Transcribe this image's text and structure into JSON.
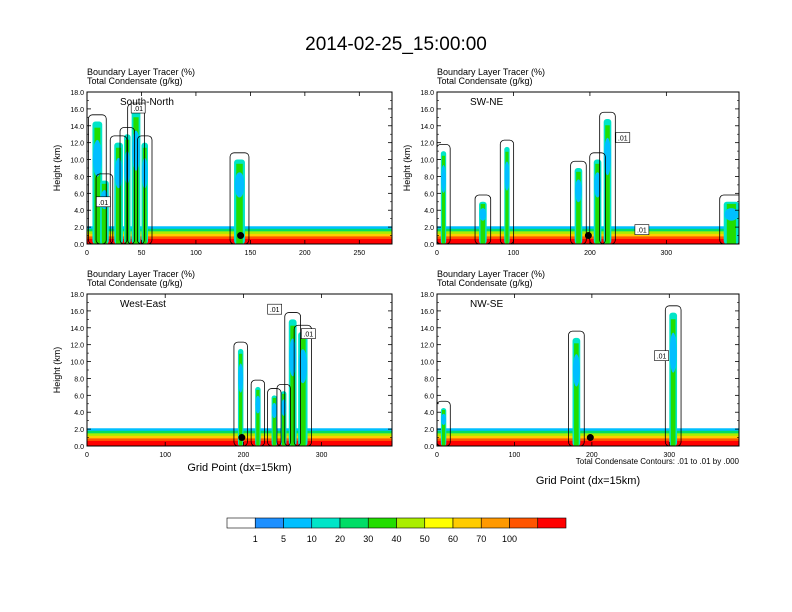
{
  "title": "2014-02-25_15:00:00",
  "footer": {
    "contour_note": "Total Condensate Contours: .01 to .01 by .000",
    "xlabel": "Grid Point (dx=15km)"
  },
  "colorbar": {
    "levels": [
      "1",
      "5",
      "10",
      "20",
      "30",
      "40",
      "50",
      "60",
      "70",
      "100"
    ],
    "colors": [
      "#ffffff",
      "#1e90ff",
      "#00bfff",
      "#00e5c8",
      "#00dd66",
      "#22dd00",
      "#aaee00",
      "#ffff00",
      "#ffcc00",
      "#ff9900",
      "#ff5500",
      "#ff0000"
    ]
  },
  "chart_data": [
    {
      "type": "heatmap",
      "name": "South-North",
      "header": [
        "Boundary Layer Tracer   (%)",
        "Total Condensate   (g/kg)"
      ],
      "ylabel": "Height (km)",
      "xlabel": "",
      "ylim": [
        0,
        18
      ],
      "yticks": [
        "0.0",
        "2.0",
        "4.0",
        "6.0",
        "8.0",
        "10.0",
        "12.0",
        "14.0",
        "16.0",
        "18.0"
      ],
      "xlim": [
        0,
        280
      ],
      "xticks": [
        "0",
        "50",
        "100",
        "150",
        "200",
        "250"
      ],
      "contour_labels": [
        {
          "text": ".01",
          "x": 47,
          "y": 16.1
        },
        {
          "text": ".01",
          "x": 15,
          "y": 5.0
        }
      ],
      "marker": {
        "x": 141,
        "y": 1.0
      },
      "tracer_columns": [
        {
          "x": [
            5,
            14
          ],
          "top": 14.5
        },
        {
          "x": [
            12,
            20
          ],
          "top": 7.5
        },
        {
          "x": [
            25,
            33
          ],
          "top": 12.0
        },
        {
          "x": [
            34,
            40
          ],
          "top": 13.0
        },
        {
          "x": [
            41,
            49
          ],
          "top": 15.8
        },
        {
          "x": [
            50,
            56
          ],
          "top": 12.0
        },
        {
          "x": [
            135,
            145
          ],
          "top": 10.0
        }
      ]
    },
    {
      "type": "heatmap",
      "name": "SW-NE",
      "header": [
        "Boundary Layer Tracer   (%)",
        "Total Condensate   (g/kg)"
      ],
      "ylabel": "Height (km)",
      "xlabel": "",
      "ylim": [
        0,
        18
      ],
      "yticks": [
        "0.0",
        "2.0",
        "4.0",
        "6.0",
        "8.0",
        "10.0",
        "12.0",
        "14.0",
        "16.0",
        "18.0"
      ],
      "xlim": [
        0,
        395
      ],
      "xticks": [
        "0",
        "100",
        "200",
        "300"
      ],
      "contour_labels": [
        {
          "text": ".01",
          "x": 243,
          "y": 12.6
        },
        {
          "text": ".01",
          "x": 268,
          "y": 1.7
        }
      ],
      "marker": {
        "x": 198,
        "y": 1.0
      },
      "tracer_columns": [
        {
          "x": [
            5,
            12
          ],
          "top": 11.0
        },
        {
          "x": [
            55,
            65
          ],
          "top": 5.0
        },
        {
          "x": [
            88,
            95
          ],
          "top": 11.5
        },
        {
          "x": [
            180,
            190
          ],
          "top": 9.0
        },
        {
          "x": [
            205,
            215
          ],
          "top": 10.0
        },
        {
          "x": [
            218,
            228
          ],
          "top": 14.8
        },
        {
          "x": [
            375,
            395
          ],
          "top": 5.0
        }
      ]
    },
    {
      "type": "heatmap",
      "name": "West-East",
      "header": [
        "Boundary Layer Tracer   (%)",
        "Total Condensate   (g/kg)"
      ],
      "ylabel": "Height (km)",
      "xlabel": "Grid Point (dx=15km)",
      "ylim": [
        0,
        18
      ],
      "yticks": [
        "0.0",
        "2.0",
        "4.0",
        "6.0",
        "8.0",
        "10.0",
        "12.0",
        "14.0",
        "16.0",
        "18.0"
      ],
      "xlim": [
        0,
        390
      ],
      "xticks": [
        "0",
        "100",
        "200",
        "300"
      ],
      "contour_labels": [
        {
          "text": ".01",
          "x": 240,
          "y": 16.2
        },
        {
          "text": ".01",
          "x": 283,
          "y": 13.3
        }
      ],
      "marker": {
        "x": 198,
        "y": 1.0
      },
      "tracer_columns": [
        {
          "x": [
            193,
            200
          ],
          "top": 11.5
        },
        {
          "x": [
            215,
            222
          ],
          "top": 7.0
        },
        {
          "x": [
            236,
            243
          ],
          "top": 6.0
        },
        {
          "x": [
            248,
            255
          ],
          "top": 6.5
        },
        {
          "x": [
            258,
            268
          ],
          "top": 15.0
        },
        {
          "x": [
            270,
            282
          ],
          "top": 13.5
        }
      ]
    },
    {
      "type": "heatmap",
      "name": "NW-SE",
      "header": [
        "Boundary Layer Tracer   (%)",
        "Total Condensate   (g/kg)"
      ],
      "ylabel": "",
      "xlabel": "",
      "ylim": [
        0,
        18
      ],
      "yticks": [
        "0.0",
        "2.0",
        "4.0",
        "6.0",
        "8.0",
        "10.0",
        "12.0",
        "14.0",
        "16.0",
        "18.0"
      ],
      "xlim": [
        0,
        390
      ],
      "xticks": [
        "0",
        "100",
        "200",
        "300"
      ],
      "contour_labels": [
        {
          "text": ".01",
          "x": 290,
          "y": 10.7
        }
      ],
      "marker": {
        "x": 198,
        "y": 1.0
      },
      "tracer_columns": [
        {
          "x": [
            175,
            185
          ],
          "top": 12.8
        },
        {
          "x": [
            300,
            310
          ],
          "top": 15.8
        },
        {
          "x": [
            5,
            12
          ],
          "top": 4.5
        }
      ]
    }
  ]
}
